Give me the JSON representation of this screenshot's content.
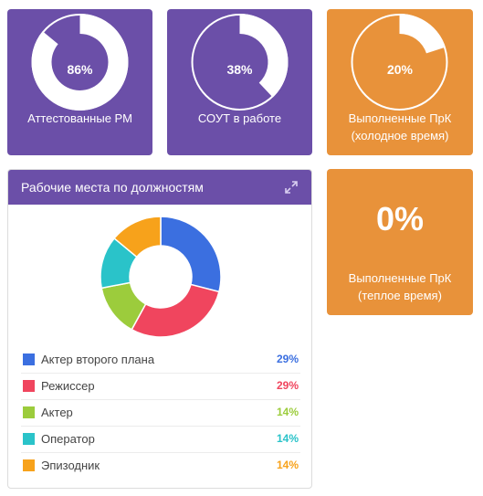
{
  "tiles": [
    {
      "percent_text": "86%",
      "value": 0.86,
      "caption_lines": [
        "Аттестованные РМ"
      ],
      "bg": "#6b4fa8",
      "ring_bg": "#6b4fa8"
    },
    {
      "percent_text": "38%",
      "value": 0.38,
      "caption_lines": [
        "СОУТ в работе"
      ],
      "bg": "#6b4fa8",
      "ring_bg": "#6b4fa8"
    },
    {
      "percent_text": "20%",
      "value": 0.2,
      "caption_lines": [
        "Выполненные ПрК",
        "(холодное время)"
      ],
      "bg": "#e8923a",
      "ring_bg": "#e8923a"
    }
  ],
  "big_tile": {
    "value_text": "0%",
    "caption_lines": [
      "Выполненные ПрК",
      "(теплое время)"
    ],
    "bg": "#e8923a"
  },
  "panel": {
    "title": "Рабочие места по должностям",
    "expand_icon": "expand-icon",
    "header_color": "#6b4fa8"
  },
  "chart_data": {
    "type": "pie",
    "categories": [
      "Актер второго плана",
      "Режиссер",
      "Актер",
      "Оператор",
      "Эпизодник"
    ],
    "values": [
      29,
      29,
      14,
      14,
      14
    ],
    "labels": [
      "29%",
      "29%",
      "14%",
      "14%",
      "14%"
    ],
    "colors": [
      "#3b6fe0",
      "#f0455e",
      "#9ccc3c",
      "#2ac3c9",
      "#f7a21b"
    ],
    "donut": true,
    "legend_position": "bottom"
  }
}
